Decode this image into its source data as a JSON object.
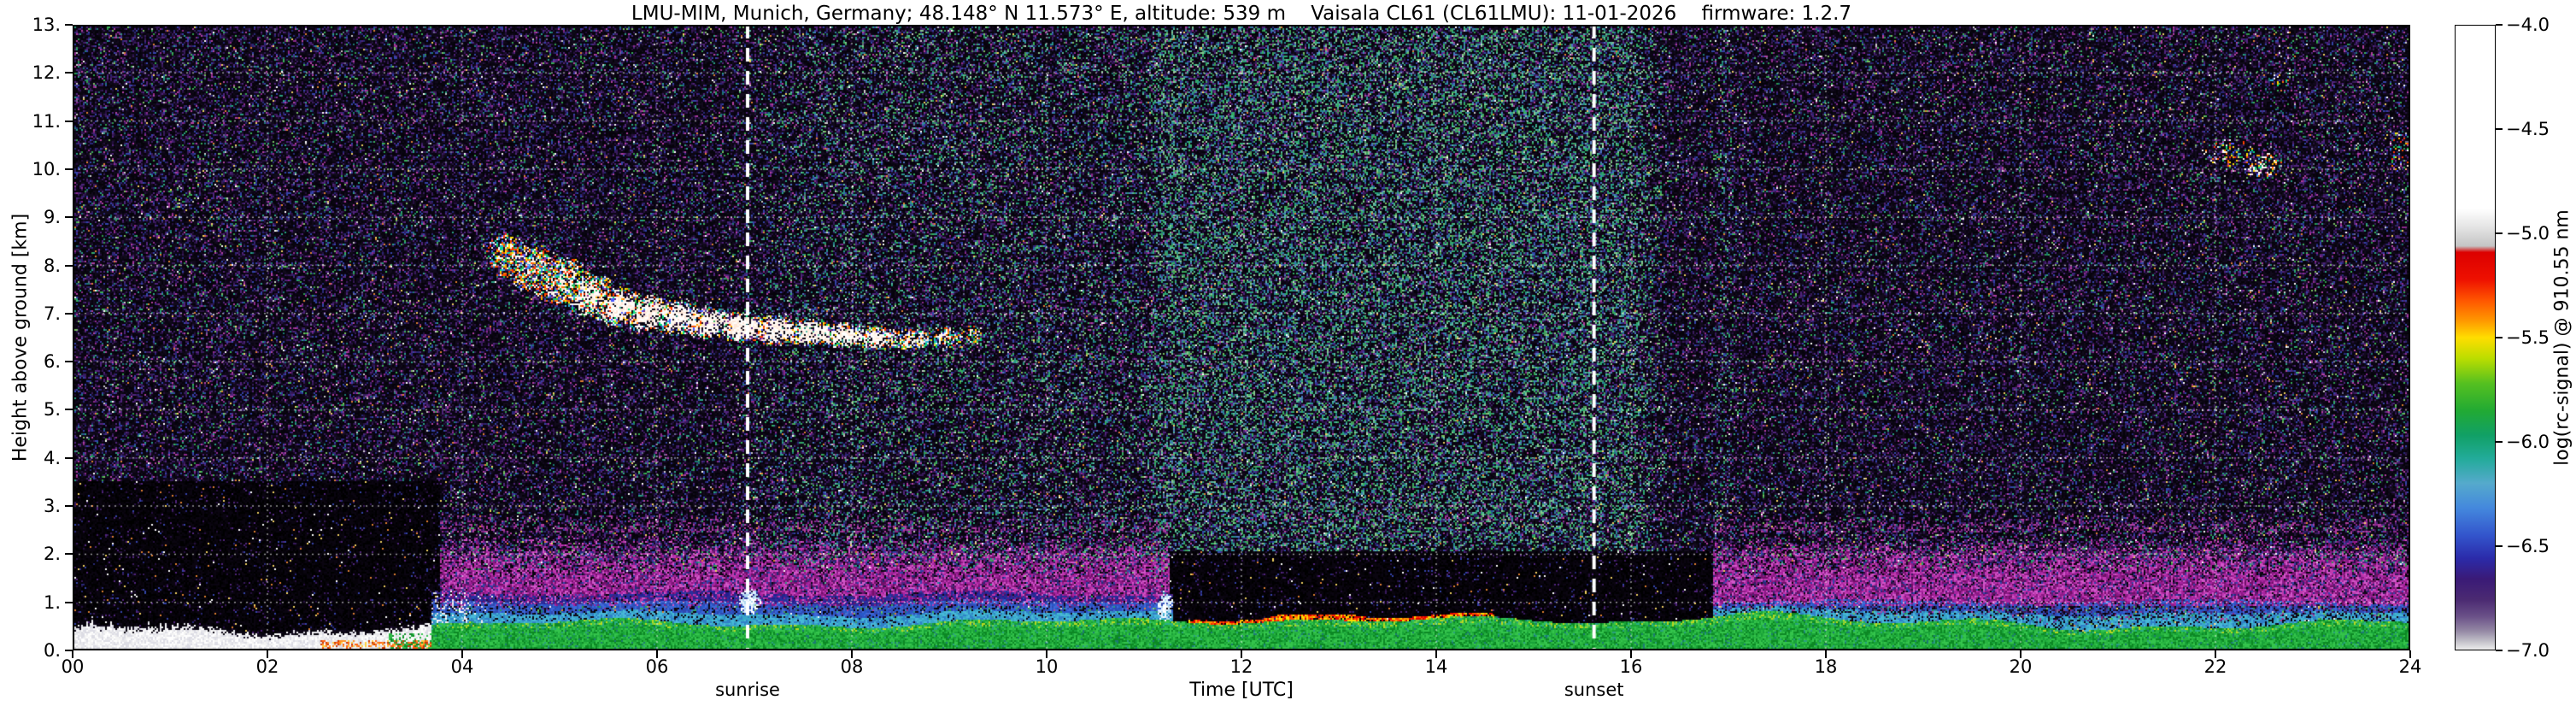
{
  "chart_data": {
    "type": "heatmap",
    "title": "LMU-MIM, Munich, Germany; 48.148° N 11.573° E, altitude: 539 m    Vaisala CL61 (CL61LMU): 11-01-2026    firmware: 1.2.7",
    "station": "LMU-MIM, Munich, Germany",
    "coordinates": "48.148° N 11.573° E",
    "altitude": "539 m",
    "instrument": "Vaisala CL61 (CL61LMU)",
    "date": "11-01-2026",
    "firmware": "1.2.7",
    "xlabel": "Time [UTC]",
    "ylabel": "Height above ground [km]",
    "xlim_hours": [
      0,
      24
    ],
    "ylim_km": [
      0,
      13
    ],
    "grid": true,
    "x_tick_labels": [
      "00",
      "02",
      "04",
      "06",
      "08",
      "10",
      "12",
      "14",
      "16",
      "18",
      "20",
      "22",
      "24"
    ],
    "y_tick_labels": [
      "0.",
      "1.",
      "2.",
      "3.",
      "4.",
      "5.",
      "6.",
      "7.",
      "8.",
      "9.",
      "10.",
      "11.",
      "12.",
      "13."
    ],
    "colorbar": {
      "label": "log(rc-signal) @ 910.55 nm",
      "vmax": -4.0,
      "vmin": -7.0,
      "tick_labels": [
        "−4.0",
        "−4.5",
        "−5.0",
        "−5.5",
        "−6.0",
        "−6.5",
        "−7.0"
      ],
      "stops": [
        {
          "v": -4.0,
          "c": "#ffffff"
        },
        {
          "v": -4.88,
          "c": "#ffffff"
        },
        {
          "v": -4.97,
          "c": "#e4e4e4"
        },
        {
          "v": -5.06,
          "c": "#c4c4c4"
        },
        {
          "v": -5.09,
          "c": "#dc0000"
        },
        {
          "v": -5.22,
          "c": "#ee1000"
        },
        {
          "v": -5.32,
          "c": "#ff5500"
        },
        {
          "v": -5.42,
          "c": "#ff9900"
        },
        {
          "v": -5.5,
          "c": "#ffdd00"
        },
        {
          "v": -5.6,
          "c": "#bbdd00"
        },
        {
          "v": -5.72,
          "c": "#55c020"
        },
        {
          "v": -5.85,
          "c": "#22aa33"
        },
        {
          "v": -5.97,
          "c": "#11a066"
        },
        {
          "v": -6.08,
          "c": "#22ab99"
        },
        {
          "v": -6.2,
          "c": "#55aacc"
        },
        {
          "v": -6.32,
          "c": "#4488dd"
        },
        {
          "v": -6.45,
          "c": "#3355cc"
        },
        {
          "v": -6.56,
          "c": "#2b2baa"
        },
        {
          "v": -6.66,
          "c": "#3a1a77"
        },
        {
          "v": -6.76,
          "c": "#4b2a72"
        },
        {
          "v": -6.84,
          "c": "#6a5088"
        },
        {
          "v": -6.91,
          "c": "#9488a4"
        },
        {
          "v": -6.96,
          "c": "#c2c0c8"
        },
        {
          "v": -7.0,
          "c": "#ececec"
        }
      ]
    },
    "events": [
      {
        "label": "sunrise",
        "time": 6.93
      },
      {
        "label": "sunset",
        "time": 15.62
      }
    ],
    "features": {
      "summary": "Ceilometer attenuated-backscatter quicklook: speckled clear-sky noise background; surface fog/white layer 0-0.45 km until ~03:40 UTC; green boundary-layer aerosol below ~0.6-1.0 km all day with yellow surface line; blue transition layer up to ~1.2 km 04-11 UTC and after 17 UTC; magenta residual aerosol band ~0.9-2.4 km; low-noise dark blocks 00:00-03:47 below 3.5 km and 11:16-16:51 below 2.1 km; red-capped mixed layer top 11:27-14:36; mid-level cloud descending 8.2 to 6.4 km between ~04:20-09:20 UTC; thin high cloud ~10-10.5 km near 22:00-22:50 UTC; enhanced green daytime solar background noise ~11:15-16:00 UTC",
      "dark_blocks": [
        {
          "t": [
            0,
            3.78
          ],
          "h_top": 3.52
        },
        {
          "t": [
            11.26,
            16.85
          ],
          "h_top": 2.06
        }
      ],
      "fog_layer": {
        "t": [
          0,
          3.68
        ],
        "top_km": 0.46
      },
      "green_layer_start_t": 3.68,
      "blue_cap": {
        "t": [
          3.68,
          11.3
        ],
        "top_km": 1.18,
        "evening_t": [
          16.85,
          24
        ],
        "evening_top_km": 1.02
      },
      "magenta_band": {
        "h": [
          0.92,
          2.45
        ],
        "full_to_km": 1.5
      },
      "red_cap_t": [
        11.45,
        14.6
      ],
      "day_noise": {
        "ramp": [
          6.8,
          7.6
        ],
        "moderate": 0.3,
        "strong_from": 11.26,
        "strong": 0.8,
        "fade": [
          16.0,
          16.4
        ]
      },
      "bright_spots": [
        [
          6.95,
          1.02,
          0.12,
          0.3
        ],
        [
          11.22,
          0.9,
          0.08,
          0.34
        ]
      ],
      "cloud_clusters": [
        [
          4.45,
          8.2,
          0.22,
          0.45,
          0.12,
          0.8
        ],
        [
          4.72,
          7.95,
          0.3,
          0.5,
          0.2,
          0.85
        ],
        [
          5.0,
          7.7,
          0.3,
          0.52,
          0.3,
          0.9
        ],
        [
          5.3,
          7.4,
          0.28,
          0.48,
          0.4,
          1
        ],
        [
          5.6,
          7.15,
          0.28,
          0.42,
          0.5,
          1
        ],
        [
          5.9,
          7.0,
          0.28,
          0.4,
          0.55,
          1
        ],
        [
          6.2,
          6.92,
          0.28,
          0.36,
          0.6,
          1
        ],
        [
          6.5,
          6.82,
          0.28,
          0.34,
          0.65,
          1
        ],
        [
          6.85,
          6.72,
          0.3,
          0.32,
          0.7,
          1
        ],
        [
          7.2,
          6.65,
          0.3,
          0.3,
          0.72,
          1
        ],
        [
          7.55,
          6.6,
          0.3,
          0.28,
          0.68,
          1
        ],
        [
          7.9,
          6.55,
          0.28,
          0.26,
          0.6,
          1
        ],
        [
          8.25,
          6.5,
          0.26,
          0.25,
          0.5,
          0.95
        ],
        [
          8.6,
          6.46,
          0.22,
          0.23,
          0.4,
          0.85
        ],
        [
          8.95,
          6.5,
          0.18,
          0.22,
          0.3,
          0.7
        ],
        [
          9.25,
          6.55,
          0.13,
          0.2,
          0.25,
          0.6
        ]
      ],
      "high_cloud_clusters": [
        [
          22.15,
          10.3,
          0.3,
          0.32,
          0.1,
          0.3
        ],
        [
          22.5,
          10.08,
          0.22,
          0.28,
          0.25,
          0.5
        ],
        [
          22.65,
          11.85,
          0.1,
          0.12,
          0.0,
          0.25
        ],
        [
          23.9,
          10.35,
          0.12,
          0.45,
          0.1,
          0.3
        ]
      ],
      "palettes": {
        "base_dark": [
          "#05030a",
          "#0a0512",
          "#110a1c"
        ],
        "block_dark": [
          "#000000",
          "#050208",
          "#0a0510"
        ],
        "purple": [
          "#261040",
          "#381a5c",
          "#50247c"
        ],
        "indigo": [
          "#282878",
          "#3444aa"
        ],
        "magenta": [
          "#a824a0",
          "#8c1a86",
          "#c03ab0",
          "#701068",
          "#d058c8"
        ],
        "pinkdim": [
          "#8c2a8c",
          "#b040a0"
        ],
        "teal": [
          "#1c7a74",
          "#2aa082"
        ],
        "green_sp": [
          "#2f9c4a",
          "#3ab058",
          "#78c060"
        ],
        "day_sp": [
          "#2aa07a",
          "#35b060",
          "#4a9a58",
          "#2a8898",
          "#4a78c0",
          "#88c890",
          "#58b8a0"
        ],
        "gray_sp": [
          "#6a6a90",
          "#cccccc"
        ],
        "bright_sp": [
          "#ffffff",
          "#e08030",
          "#f0d060"
        ],
        "fog": [
          "#ffffff",
          "#f4f4f4",
          "#e8e8ec",
          "#dcdce4"
        ],
        "fog_orange": [
          "#ff6010",
          "#ff9020",
          "#c83808",
          "#ffd040"
        ],
        "green_layer": [
          "#0c8824",
          "#18a238",
          "#28b440",
          "#34c44c"
        ],
        "green_edge": [
          "#b8d820",
          "#28b088",
          "#70d048"
        ],
        "surface": [
          "#d8e400",
          "#f0f060",
          "#ffffff",
          "#c8dc10"
        ],
        "red_cap": [
          "#ff2000",
          "#ff5500",
          "#ff9900",
          "#ffdd00",
          "#e00000"
        ],
        "blue_low": [
          "#38a8c8",
          "#3080c8",
          "#48b8d8"
        ],
        "blue_mid": [
          "#2858c8",
          "#3048b0",
          "#4068d8"
        ],
        "blue_high": [
          "#2830a0",
          "#241c90",
          "#302890"
        ],
        "cloud": [
          "#ff3000",
          "#ff7000",
          "#ffb000",
          "#ffe000",
          "#20c050",
          "#30b0e0",
          "#4858ff",
          "#ffffff",
          "#ff5000",
          "#00e080"
        ],
        "cloud_core": [
          "#ffffff",
          "#fff8f0",
          "#ffe8d8"
        ],
        "white_spot": [
          "#ffffff",
          "#e0f0ff",
          "#b0d8f0"
        ]
      }
    }
  }
}
